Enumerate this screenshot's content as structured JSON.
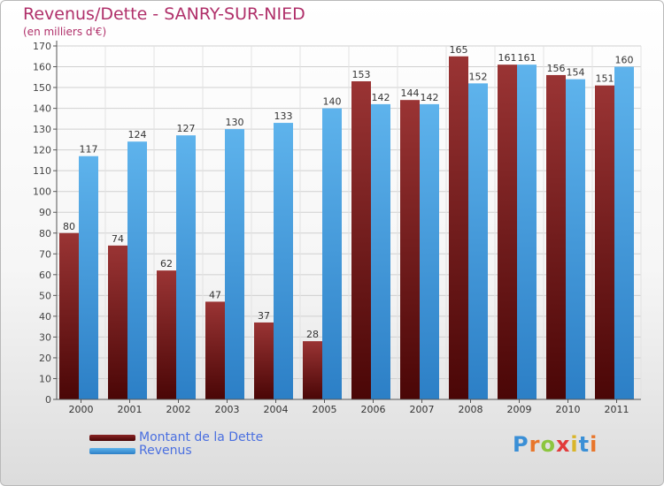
{
  "chart_data": {
    "type": "bar",
    "title": "Revenus/Dette - SANRY-SUR-NIED",
    "subtitle": "(en milliers d'€)",
    "xlabel": "",
    "ylabel": "",
    "categories": [
      "2000",
      "2001",
      "2002",
      "2003",
      "2004",
      "2005",
      "2006",
      "2007",
      "2008",
      "2009",
      "2010",
      "2011"
    ],
    "series": [
      {
        "name": "Montant de la Dette",
        "color": "#7a1a1a",
        "values": [
          80,
          74,
          62,
          47,
          37,
          28,
          153,
          144,
          165,
          161,
          156,
          151
        ]
      },
      {
        "name": "Revenus",
        "color": "#4ba3e3",
        "values": [
          117,
          124,
          127,
          130,
          133,
          140,
          142,
          142,
          152,
          161,
          154,
          160
        ]
      }
    ],
    "ylim": [
      0,
      170
    ],
    "ytick_step": 10,
    "grid": true,
    "legend_position": "bottom-left",
    "data_labels": true
  },
  "branding": {
    "logo_text": "Proxiti"
  }
}
